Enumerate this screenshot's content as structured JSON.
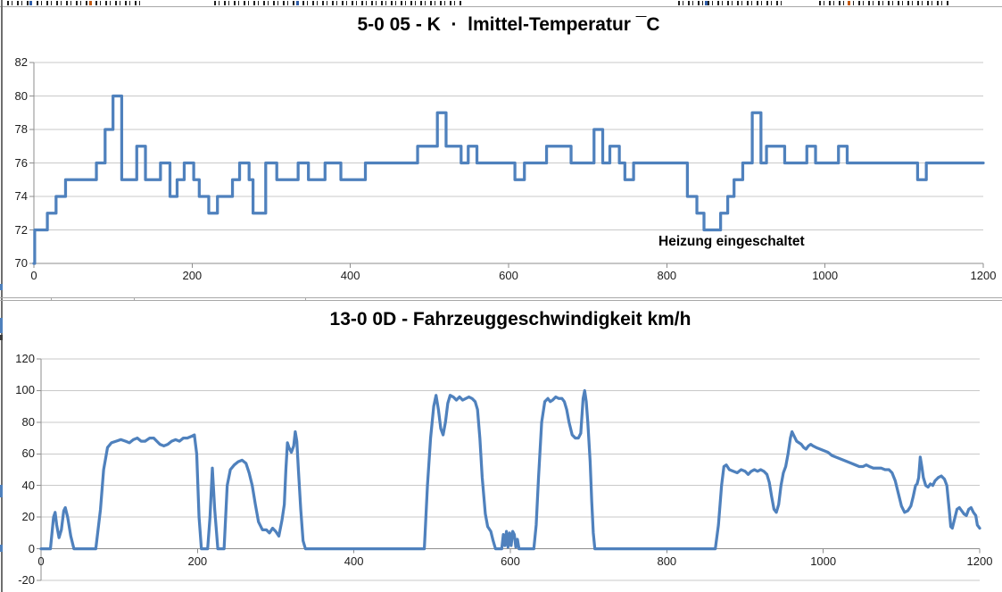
{
  "accent_color": "#4F81BD",
  "chart_data": [
    {
      "type": "line",
      "step": true,
      "title": "5-0 05 - K  ·  lmittel-Temperatur ¯C",
      "annotation": {
        "text": "Heizung eingeschaltet"
      },
      "color": "#4F81BD",
      "xlim": [
        0,
        1200
      ],
      "ylim": [
        70,
        82
      ],
      "x_axis_at": 70,
      "x_ticks": [
        0,
        200,
        400,
        600,
        800,
        1000,
        1200
      ],
      "y_ticks": [
        70,
        72,
        74,
        76,
        78,
        80,
        82
      ],
      "grid": true,
      "legend": "none",
      "points": [
        [
          0,
          70
        ],
        [
          1,
          72
        ],
        [
          17,
          73
        ],
        [
          28,
          74
        ],
        [
          40,
          75
        ],
        [
          79,
          76
        ],
        [
          90,
          78
        ],
        [
          100,
          80
        ],
        [
          111,
          75
        ],
        [
          130,
          77
        ],
        [
          141,
          75
        ],
        [
          160,
          76
        ],
        [
          172,
          74
        ],
        [
          181,
          75
        ],
        [
          190,
          76
        ],
        [
          202,
          75
        ],
        [
          209,
          74
        ],
        [
          221,
          73
        ],
        [
          232,
          74
        ],
        [
          251,
          75
        ],
        [
          260,
          76
        ],
        [
          272,
          75
        ],
        [
          277,
          73
        ],
        [
          293,
          76
        ],
        [
          307,
          75
        ],
        [
          334,
          76
        ],
        [
          347,
          75
        ],
        [
          368,
          76
        ],
        [
          388,
          75
        ],
        [
          419,
          76
        ],
        [
          485,
          77
        ],
        [
          510,
          79
        ],
        [
          521,
          77
        ],
        [
          540,
          76
        ],
        [
          549,
          77
        ],
        [
          560,
          76
        ],
        [
          608,
          75
        ],
        [
          620,
          76
        ],
        [
          648,
          77
        ],
        [
          679,
          76
        ],
        [
          708,
          78
        ],
        [
          719,
          76
        ],
        [
          728,
          77
        ],
        [
          740,
          76
        ],
        [
          747,
          75
        ],
        [
          758,
          76
        ],
        [
          826,
          74
        ],
        [
          838,
          73
        ],
        [
          847,
          72
        ],
        [
          868,
          73
        ],
        [
          877,
          74
        ],
        [
          885,
          75
        ],
        [
          896,
          76
        ],
        [
          908,
          79
        ],
        [
          919,
          76
        ],
        [
          926,
          77
        ],
        [
          949,
          76
        ],
        [
          977,
          77
        ],
        [
          988,
          76
        ],
        [
          1017,
          77
        ],
        [
          1028,
          76
        ],
        [
          1117,
          75
        ],
        [
          1128,
          76
        ]
      ]
    },
    {
      "type": "line",
      "step": false,
      "title": "13-0 0D - Fahrzeuggeschwindigkeit km/h",
      "color": "#4F81BD",
      "xlim": [
        0,
        1200
      ],
      "ylim": [
        -20,
        120
      ],
      "x_axis_at": 0,
      "x_ticks": [
        0,
        200,
        400,
        600,
        800,
        1000,
        1200
      ],
      "y_ticks": [
        -20,
        0,
        20,
        40,
        60,
        80,
        100,
        120
      ],
      "grid": true,
      "legend": "none",
      "points": [
        [
          0,
          0
        ],
        [
          12,
          0
        ],
        [
          16,
          20
        ],
        [
          18,
          23
        ],
        [
          20,
          15
        ],
        [
          23,
          7
        ],
        [
          26,
          12
        ],
        [
          29,
          24
        ],
        [
          31,
          26
        ],
        [
          34,
          20
        ],
        [
          38,
          8
        ],
        [
          42,
          0
        ],
        [
          70,
          0
        ],
        [
          76,
          25
        ],
        [
          80,
          50
        ],
        [
          85,
          64
        ],
        [
          90,
          67
        ],
        [
          96,
          68
        ],
        [
          102,
          69
        ],
        [
          108,
          68
        ],
        [
          113,
          67
        ],
        [
          118,
          69
        ],
        [
          123,
          70
        ],
        [
          128,
          68
        ],
        [
          133,
          68
        ],
        [
          139,
          70
        ],
        [
          144,
          70
        ],
        [
          148,
          68
        ],
        [
          152,
          66
        ],
        [
          157,
          65
        ],
        [
          162,
          66
        ],
        [
          167,
          68
        ],
        [
          172,
          69
        ],
        [
          177,
          68
        ],
        [
          182,
          70
        ],
        [
          187,
          70
        ],
        [
          192,
          71
        ],
        [
          196,
          72
        ],
        [
          199,
          60
        ],
        [
          202,
          20
        ],
        [
          205,
          0
        ],
        [
          213,
          0
        ],
        [
          216,
          20
        ],
        [
          219,
          51
        ],
        [
          222,
          25
        ],
        [
          226,
          0
        ],
        [
          234,
          0
        ],
        [
          238,
          40
        ],
        [
          242,
          50
        ],
        [
          247,
          53
        ],
        [
          252,
          55
        ],
        [
          257,
          56
        ],
        [
          262,
          54
        ],
        [
          266,
          48
        ],
        [
          270,
          40
        ],
        [
          274,
          28
        ],
        [
          278,
          17
        ],
        [
          283,
          12
        ],
        [
          288,
          12
        ],
        [
          292,
          10
        ],
        [
          296,
          13
        ],
        [
          300,
          11
        ],
        [
          304,
          8
        ],
        [
          308,
          18
        ],
        [
          311,
          28
        ],
        [
          313,
          50
        ],
        [
          315,
          67
        ],
        [
          317,
          64
        ],
        [
          320,
          61
        ],
        [
          323,
          65
        ],
        [
          325,
          74
        ],
        [
          327,
          68
        ],
        [
          329,
          50
        ],
        [
          332,
          25
        ],
        [
          335,
          5
        ],
        [
          338,
          0
        ],
        [
          490,
          0
        ],
        [
          494,
          40
        ],
        [
          498,
          70
        ],
        [
          502,
          90
        ],
        [
          505,
          97
        ],
        [
          508,
          88
        ],
        [
          511,
          76
        ],
        [
          514,
          72
        ],
        [
          517,
          80
        ],
        [
          520,
          92
        ],
        [
          523,
          97
        ],
        [
          527,
          96
        ],
        [
          531,
          94
        ],
        [
          535,
          96
        ],
        [
          539,
          94
        ],
        [
          543,
          95
        ],
        [
          547,
          96
        ],
        [
          551,
          95
        ],
        [
          555,
          93
        ],
        [
          558,
          88
        ],
        [
          561,
          70
        ],
        [
          564,
          45
        ],
        [
          568,
          22
        ],
        [
          571,
          14
        ],
        [
          575,
          11
        ],
        [
          578,
          5
        ],
        [
          581,
          0
        ],
        [
          589,
          0
        ],
        [
          591,
          9
        ],
        [
          593,
          2
        ],
        [
          595,
          11
        ],
        [
          597,
          1
        ],
        [
          599,
          10
        ],
        [
          601,
          2
        ],
        [
          603,
          11
        ],
        [
          605,
          9
        ],
        [
          607,
          1
        ],
        [
          609,
          6
        ],
        [
          611,
          0
        ],
        [
          630,
          0
        ],
        [
          633,
          15
        ],
        [
          636,
          45
        ],
        [
          640,
          80
        ],
        [
          644,
          93
        ],
        [
          648,
          95
        ],
        [
          651,
          93
        ],
        [
          654,
          94
        ],
        [
          658,
          96
        ],
        [
          662,
          95
        ],
        [
          666,
          95
        ],
        [
          669,
          93
        ],
        [
          672,
          88
        ],
        [
          675,
          80
        ],
        [
          679,
          72
        ],
        [
          683,
          70
        ],
        [
          687,
          70
        ],
        [
          690,
          73
        ],
        [
          693,
          95
        ],
        [
          695,
          100
        ],
        [
          697,
          93
        ],
        [
          699,
          80
        ],
        [
          702,
          55
        ],
        [
          704,
          30
        ],
        [
          706,
          10
        ],
        [
          708,
          0
        ],
        [
          862,
          0
        ],
        [
          866,
          15
        ],
        [
          870,
          40
        ],
        [
          873,
          52
        ],
        [
          876,
          53
        ],
        [
          880,
          50
        ],
        [
          885,
          49
        ],
        [
          890,
          48
        ],
        [
          895,
          50
        ],
        [
          900,
          49
        ],
        [
          904,
          47
        ],
        [
          908,
          49
        ],
        [
          912,
          50
        ],
        [
          916,
          49
        ],
        [
          920,
          50
        ],
        [
          924,
          49
        ],
        [
          928,
          47
        ],
        [
          931,
          42
        ],
        [
          934,
          33
        ],
        [
          937,
          25
        ],
        [
          940,
          23
        ],
        [
          943,
          28
        ],
        [
          946,
          40
        ],
        [
          949,
          48
        ],
        [
          952,
          52
        ],
        [
          955,
          60
        ],
        [
          958,
          70
        ],
        [
          960,
          74
        ],
        [
          963,
          71
        ],
        [
          966,
          68
        ],
        [
          969,
          67
        ],
        [
          972,
          66
        ],
        [
          975,
          64
        ],
        [
          978,
          63
        ],
        [
          981,
          65
        ],
        [
          984,
          66
        ],
        [
          987,
          65
        ],
        [
          991,
          64
        ],
        [
          996,
          63
        ],
        [
          1001,
          62
        ],
        [
          1006,
          61
        ],
        [
          1011,
          59
        ],
        [
          1016,
          58
        ],
        [
          1021,
          57
        ],
        [
          1026,
          56
        ],
        [
          1031,
          55
        ],
        [
          1036,
          54
        ],
        [
          1041,
          53
        ],
        [
          1046,
          52
        ],
        [
          1051,
          52
        ],
        [
          1055,
          53
        ],
        [
          1059,
          52
        ],
        [
          1064,
          51
        ],
        [
          1069,
          51
        ],
        [
          1074,
          51
        ],
        [
          1079,
          50
        ],
        [
          1084,
          50
        ],
        [
          1088,
          48
        ],
        [
          1092,
          43
        ],
        [
          1096,
          35
        ],
        [
          1100,
          27
        ],
        [
          1104,
          23
        ],
        [
          1108,
          24
        ],
        [
          1112,
          27
        ],
        [
          1115,
          33
        ],
        [
          1118,
          40
        ],
        [
          1120,
          41
        ],
        [
          1122,
          45
        ],
        [
          1124,
          58
        ],
        [
          1126,
          52
        ],
        [
          1128,
          45
        ],
        [
          1131,
          40
        ],
        [
          1134,
          39
        ],
        [
          1137,
          41
        ],
        [
          1140,
          40
        ],
        [
          1143,
          43
        ],
        [
          1147,
          45
        ],
        [
          1151,
          46
        ],
        [
          1155,
          44
        ],
        [
          1158,
          40
        ],
        [
          1161,
          25
        ],
        [
          1163,
          14
        ],
        [
          1165,
          13
        ],
        [
          1168,
          19
        ],
        [
          1171,
          25
        ],
        [
          1174,
          26
        ],
        [
          1177,
          24
        ],
        [
          1180,
          22
        ],
        [
          1183,
          21
        ],
        [
          1186,
          25
        ],
        [
          1189,
          26
        ],
        [
          1192,
          23
        ],
        [
          1195,
          21
        ],
        [
          1197,
          15
        ],
        [
          1200,
          13
        ]
      ]
    }
  ]
}
